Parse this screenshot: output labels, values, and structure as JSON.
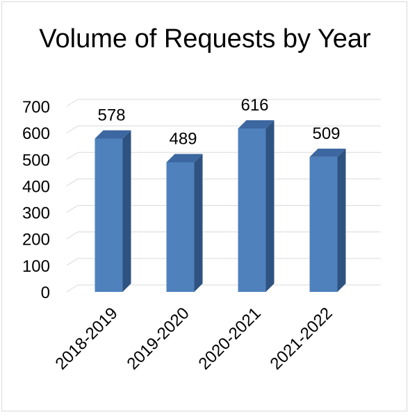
{
  "chart_data": {
    "type": "bar",
    "title": "Volume of Requests by Year",
    "categories": [
      "2018-2019",
      "2019-2020",
      "2020-2021",
      "2021-2022"
    ],
    "values": [
      578,
      489,
      616,
      509
    ],
    "ylim": [
      0,
      700
    ],
    "yticks": [
      0,
      100,
      200,
      300,
      400,
      500,
      600,
      700
    ],
    "xlabel": "",
    "ylabel": "",
    "grid": true,
    "legend": "none",
    "style": "3d-column",
    "colors": {
      "bar_front": "#4f81bd",
      "bar_side": "#2f5380",
      "bar_top": "#3c67a0",
      "grid": "#d9d9d9",
      "text": "#000000"
    }
  }
}
